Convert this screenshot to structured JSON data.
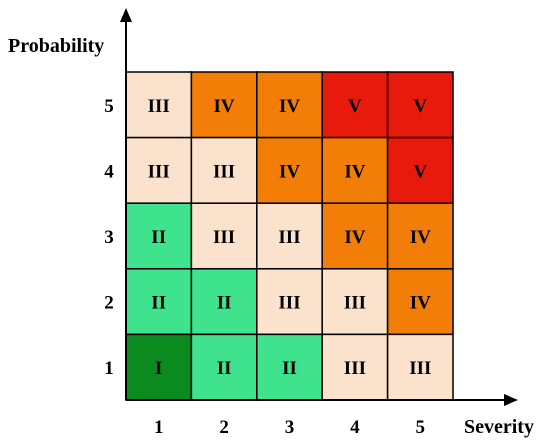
{
  "y_axis_label": "Probability",
  "x_axis_label": "Severity",
  "x_ticks": [
    "1",
    "2",
    "3",
    "4",
    "5"
  ],
  "y_ticks": [
    "1",
    "2",
    "3",
    "4",
    "5"
  ],
  "level_colors": {
    "I": "#0a8a1f",
    "II": "#40e38d",
    "III": "#fbe2cc",
    "IV": "#f27e07",
    "V": "#e81a0b"
  },
  "matrix": [
    [
      "III",
      "IV",
      "IV",
      "V",
      "V"
    ],
    [
      "III",
      "III",
      "IV",
      "IV",
      "V"
    ],
    [
      "II",
      "III",
      "III",
      "IV",
      "IV"
    ],
    [
      "II",
      "II",
      "III",
      "III",
      "IV"
    ],
    [
      "I",
      "II",
      "II",
      "III",
      "III"
    ]
  ],
  "line_color": "#000000"
}
